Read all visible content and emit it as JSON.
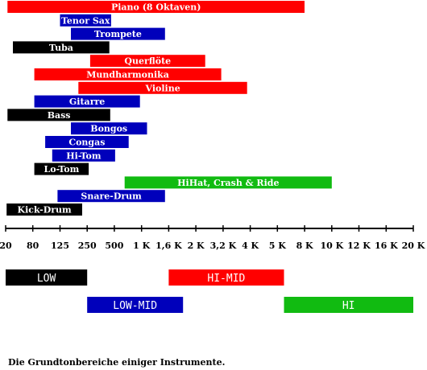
{
  "colors": {
    "red": "#ff0000",
    "blue": "#0000bb",
    "black": "#000000",
    "green": "#11bb11",
    "axis": "#000000"
  },
  "chart_data": {
    "type": "bar",
    "orientation": "horizontal-range",
    "scale": "log",
    "unit": "Hz",
    "tick_values": [
      20,
      80,
      125,
      250,
      500,
      1000,
      1600,
      2000,
      3200,
      4000,
      5000,
      8000,
      10000,
      12000,
      16000,
      20000
    ],
    "tick_labels": [
      "20",
      "80",
      "125",
      "250",
      "500",
      "1 K",
      "1,6 K",
      "2 K",
      "3,2 K",
      "4 K",
      "5 K",
      "8 K",
      "10 K",
      "12 K",
      "16 K",
      "20 K"
    ],
    "instruments": [
      {
        "label": "Piano (8 Oktaven)",
        "from": 22,
        "to": 8000,
        "color": "red"
      },
      {
        "label": "Tenor Sax",
        "from": 125,
        "to": 460,
        "color": "blue"
      },
      {
        "label": "Trompete",
        "from": 165,
        "to": 1500,
        "color": "blue"
      },
      {
        "label": "Tuba",
        "from": 29,
        "to": 440,
        "color": "black"
      },
      {
        "label": "Querflöte",
        "from": 270,
        "to": 2350,
        "color": "red"
      },
      {
        "label": "Mundharmonika",
        "from": 82,
        "to": 3100,
        "color": "red"
      },
      {
        "label": "Violine",
        "from": 200,
        "to": 3900,
        "color": "red"
      },
      {
        "label": "Gitarre",
        "from": 82,
        "to": 960,
        "color": "blue"
      },
      {
        "label": "Bass",
        "from": 22,
        "to": 450,
        "color": "black"
      },
      {
        "label": "Bongos",
        "from": 165,
        "to": 1100,
        "color": "blue"
      },
      {
        "label": "Congas",
        "from": 98,
        "to": 720,
        "color": "blue"
      },
      {
        "label": "Hi-Tom",
        "from": 110,
        "to": 510,
        "color": "blue"
      },
      {
        "label": "Lo-Tom",
        "from": 82,
        "to": 260,
        "color": "black"
      },
      {
        "label": "HiHat, Crash & Ride",
        "from": 650,
        "to": 10000,
        "color": "green"
      },
      {
        "label": "Snare-Drum",
        "from": 120,
        "to": 1500,
        "color": "blue"
      },
      {
        "label": "Kick-Drum",
        "from": 21,
        "to": 220,
        "color": "black"
      }
    ],
    "bands": [
      {
        "label": "LOW",
        "from": 20,
        "to": 250,
        "color": "black",
        "row": 0
      },
      {
        "label": "HI-MID",
        "from": 1600,
        "to": 5600,
        "color": "red",
        "row": 0
      },
      {
        "label": "LOW-MID",
        "from": 250,
        "to": 1800,
        "color": "blue",
        "row": 1
      },
      {
        "label": "HI",
        "from": 5600,
        "to": 20000,
        "color": "green",
        "row": 1
      }
    ]
  },
  "caption": "Die Grundtonbereiche einiger Instrumente."
}
